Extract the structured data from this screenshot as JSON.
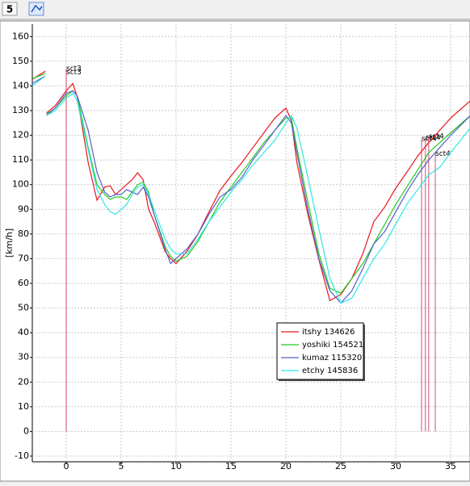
{
  "toolbar": {
    "button_label": "5"
  },
  "chart_data": {
    "type": "line",
    "ylabel": "[km/h]",
    "x": [
      -3.1,
      -1.9,
      -1.85,
      -1.8,
      -1,
      0,
      0.6,
      1,
      2,
      2.8,
      3.5,
      4,
      4.5,
      5,
      5.5,
      6,
      6.5,
      7,
      7.5,
      8,
      9,
      9.5,
      10,
      11,
      12,
      13,
      14,
      15,
      16,
      17,
      18,
      19,
      20,
      20.5,
      21,
      22,
      23,
      24,
      25,
      26,
      27,
      28,
      29,
      30,
      31,
      32,
      33,
      34,
      35,
      36.8
    ],
    "series": [
      {
        "name": "itshy 134626",
        "color": "#e8161e",
        "values": [
          142.7,
          146,
          null,
          129,
          132,
          138,
          141,
          135.5,
          109,
          93.7,
          99,
          99.5,
          96,
          98,
          100,
          102,
          104.8,
          102,
          90,
          85,
          73,
          70,
          68,
          73,
          80,
          89,
          97.6,
          103.5,
          109,
          115,
          121,
          127,
          131,
          126,
          109,
          88,
          69.5,
          53,
          55.5,
          62,
          72,
          85,
          91,
          98.6,
          105,
          111.6,
          117,
          122,
          127,
          134
        ]
      },
      {
        "name": "yoshiki 154521",
        "color": "#22cc22",
        "values": [
          143,
          145,
          null,
          128.5,
          131,
          136,
          138,
          136,
          115,
          100,
          96,
          94,
          95,
          95,
          94,
          97,
          100,
          101,
          97,
          88,
          75,
          71,
          69,
          71,
          77,
          85,
          93,
          99,
          105,
          111,
          117,
          122,
          127,
          127,
          115,
          93,
          72,
          58,
          56,
          62,
          68,
          76,
          84,
          92,
          99,
          106,
          113,
          117,
          121,
          128
        ]
      },
      {
        "name": "kumaz 115320",
        "color": "#5560c8",
        "values": [
          141,
          144,
          null,
          128,
          131,
          137,
          138,
          136,
          122,
          105,
          97,
          95,
          96,
          96,
          98,
          97,
          96,
          99,
          95,
          88,
          74,
          68,
          70,
          74,
          80,
          88,
          95,
          98,
          103,
          110,
          116,
          122,
          128,
          125,
          113,
          90,
          70,
          57,
          52,
          57,
          66,
          76,
          81,
          89,
          97,
          104,
          110,
          115,
          120,
          128
        ]
      },
      {
        "name": "etchy 145836",
        "color": "#2ee6e6",
        "values": [
          140,
          144,
          null,
          128,
          130,
          135,
          137,
          134,
          114,
          98,
          92,
          89,
          88,
          90,
          92,
          96,
          99,
          100,
          96,
          90,
          78,
          74,
          72,
          72,
          78,
          85,
          91,
          97,
          102,
          108,
          113,
          118,
          125,
          128,
          123,
          103,
          82,
          62,
          52,
          54,
          62,
          70,
          76,
          84,
          92,
          98,
          104,
          107,
          113,
          123
        ]
      }
    ],
    "markers": [
      {
        "label": "sct3",
        "x": 0,
        "y": 147,
        "color": "#d05070"
      },
      {
        "label": "sct3",
        "x": 0,
        "y": 145.5,
        "color": "#d05070"
      },
      {
        "label": "sct4",
        "x": 32.35,
        "y": 118.5,
        "color": "#d05070"
      },
      {
        "label": "sct4",
        "x": 32.7,
        "y": 119,
        "color": "#d05070"
      },
      {
        "label": "sct4",
        "x": 33.0,
        "y": 119.5,
        "color": "#d05070"
      },
      {
        "label": "sct4",
        "x": 33.6,
        "y": 112.5,
        "color": "#d05070"
      }
    ],
    "xlim": [
      -3.09,
      36.76
    ],
    "ylim": [
      -12.3,
      165
    ],
    "xticks": [
      0,
      5,
      10,
      15,
      20,
      25,
      30,
      35
    ],
    "yticks": [
      -10,
      0,
      10,
      20,
      30,
      40,
      50,
      60,
      70,
      80,
      90,
      100,
      110,
      120,
      130,
      140,
      150,
      160
    ],
    "grid": true,
    "legend": "lower center"
  }
}
